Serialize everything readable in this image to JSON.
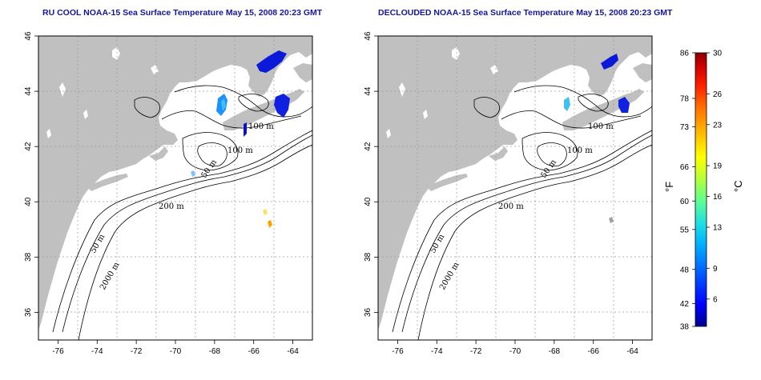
{
  "titles": {
    "left": "RU COOL NOAA-15 Sea Surface Temperature May 15, 2008 20:23 GMT",
    "right": "DECLOUDED NOAA-15 Sea Surface Temperature May 15, 2008 20:23 GMT"
  },
  "map": {
    "lon_range": [
      -77,
      -63
    ],
    "lat_range": [
      35,
      46
    ],
    "lon_ticks": [
      "-76",
      "-74",
      "-72",
      "-70",
      "-68",
      "-66",
      "-64"
    ],
    "lat_ticks": [
      "46",
      "44",
      "42",
      "40",
      "38",
      "36"
    ],
    "land_color": "#c0c0c0",
    "ocean_color": "#ffffff",
    "grid": "dotted",
    "contour_labels": [
      "100 m",
      "100 m",
      "50 m",
      "200 m",
      "50 m",
      "2000 m"
    ]
  },
  "colorbar": {
    "fahrenheit_ticks": [
      "86",
      "78",
      "73",
      "66",
      "60",
      "55",
      "48",
      "42",
      "38"
    ],
    "celsius_ticks": [
      "30",
      "26",
      "23",
      "19",
      "16",
      "13",
      "9",
      "6"
    ],
    "fahrenheit_label": "°F",
    "celsius_label": "°C",
    "gradient": [
      "#00008b",
      "#0000ff",
      "#0060ff",
      "#00b0ff",
      "#20e0e0",
      "#60ff90",
      "#c0ff30",
      "#ffff00",
      "#ffc000",
      "#ff7000",
      "#ff2000",
      "#d00000",
      "#8b0000"
    ]
  }
}
